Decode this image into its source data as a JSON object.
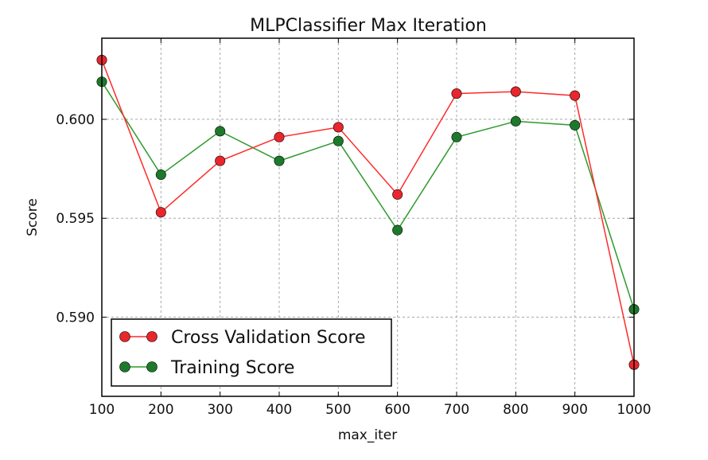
{
  "chart_data": {
    "type": "line",
    "title": "MLPClassifier Max Iteration",
    "xlabel": "max_iter",
    "ylabel": "Score",
    "x": [
      100,
      200,
      300,
      400,
      500,
      600,
      700,
      800,
      900,
      1000
    ],
    "xlim": [
      100,
      1000
    ],
    "ylim": [
      0.586,
      0.6041
    ],
    "xticks": [
      100,
      200,
      300,
      400,
      500,
      600,
      700,
      800,
      900,
      1000
    ],
    "yticks": [
      0.59,
      0.595,
      0.6
    ],
    "ytick_labels": [
      "0.590",
      "0.595",
      "0.600"
    ],
    "grid": true,
    "legend_position": "lower-left",
    "series": [
      {
        "name": "Cross Validation Score",
        "color": "#ff2a2a",
        "marker_color": "#e8262c",
        "values": [
          0.603,
          0.5953,
          0.5979,
          0.5991,
          0.5996,
          0.5962,
          0.6013,
          0.6014,
          0.6012,
          0.5876
        ]
      },
      {
        "name": "Training Score",
        "color": "#2e9a2e",
        "marker_color": "#1c7a2a",
        "values": [
          0.6019,
          0.5972,
          0.5994,
          0.5979,
          0.5989,
          0.5944,
          0.5991,
          0.5999,
          0.5997,
          0.5904
        ]
      }
    ]
  }
}
